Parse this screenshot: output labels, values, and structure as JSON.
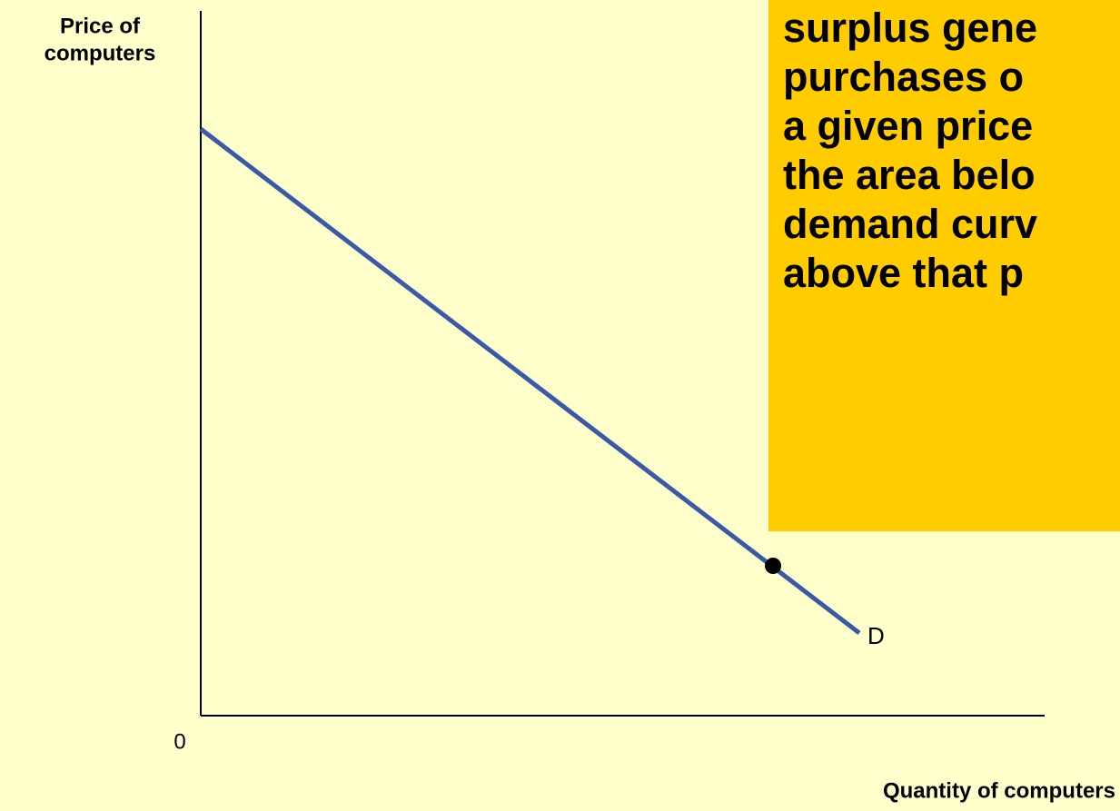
{
  "axes": {
    "y_label": [
      "Price of",
      "computers"
    ],
    "x_label": "Quantity of computers",
    "origin": "0"
  },
  "curve_label": "D",
  "callout": {
    "lines": [
      "surplus gene",
      "purchases o",
      "a given price",
      "the area belo",
      "demand curv",
      "above that p"
    ]
  }
}
